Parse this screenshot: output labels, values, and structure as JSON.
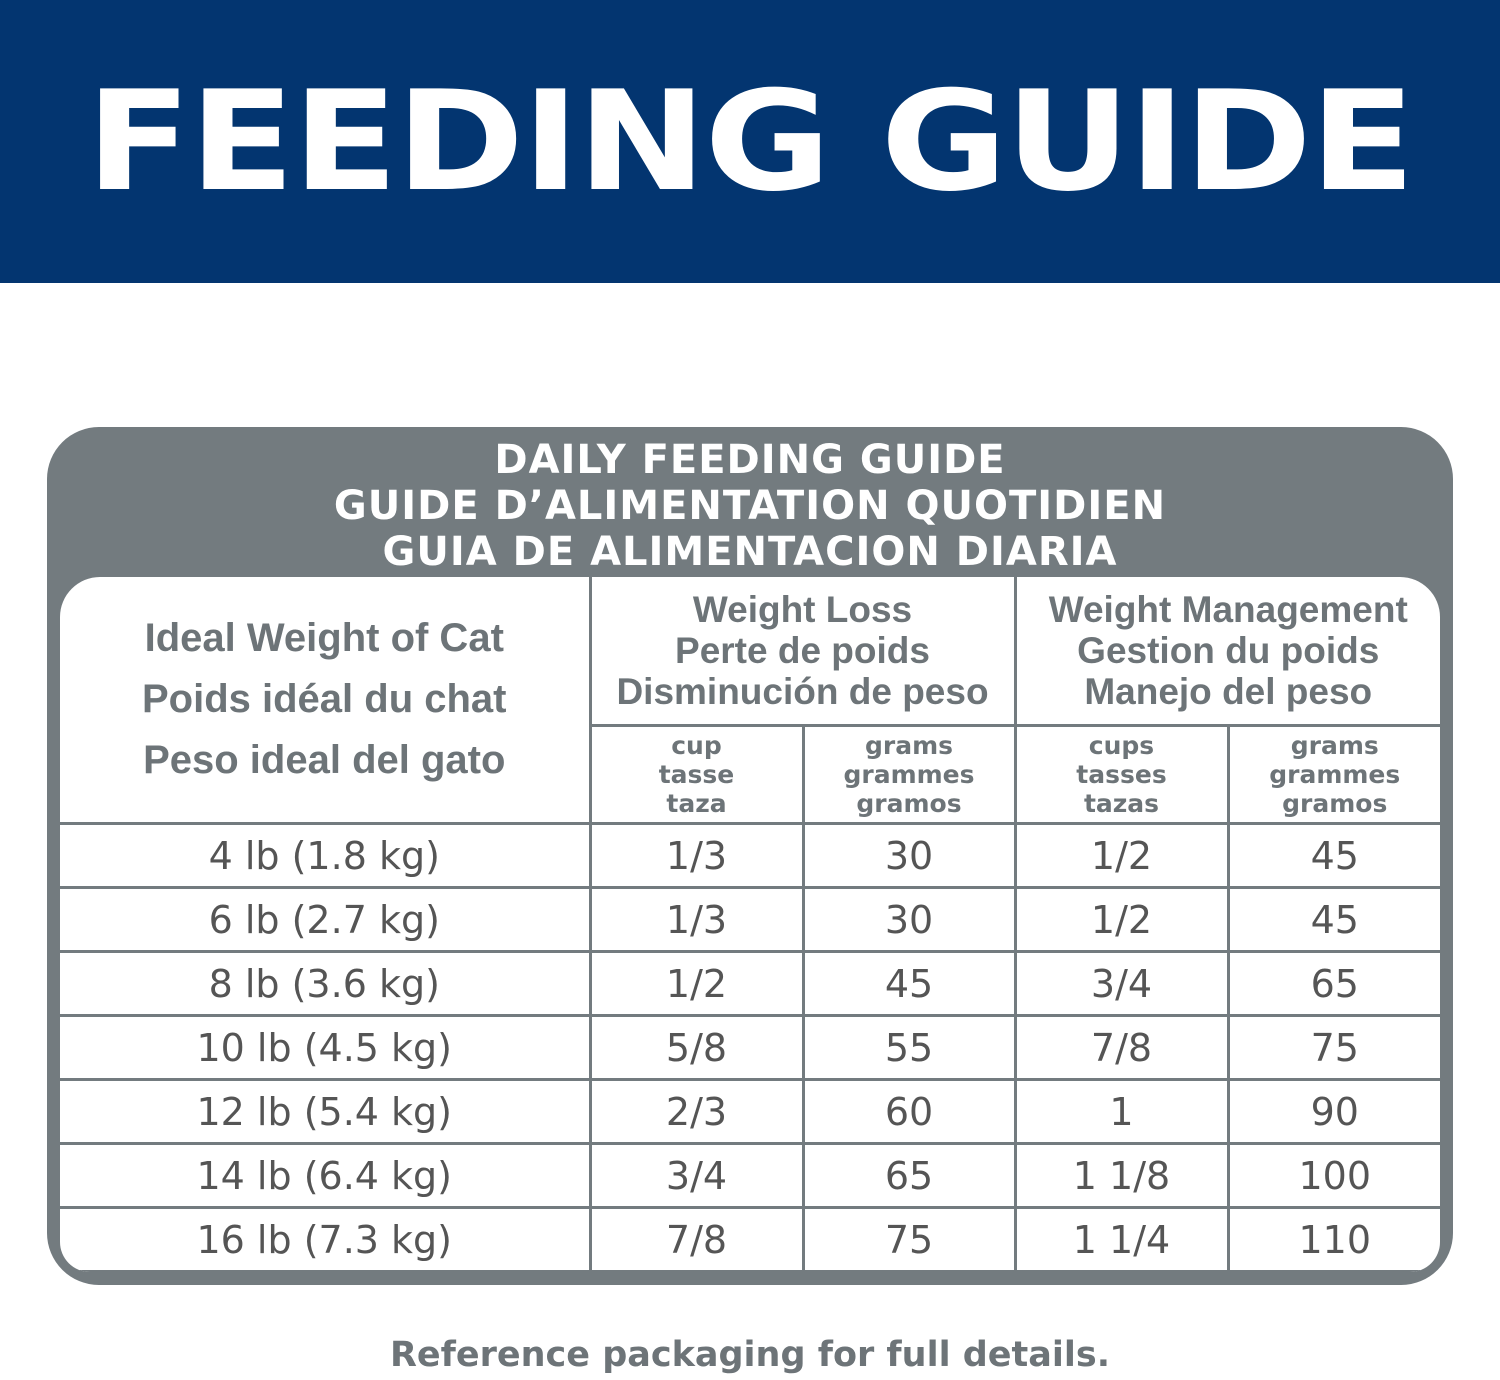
{
  "header": {
    "title": "FEEDING GUIDE"
  },
  "table": {
    "title": [
      "DAILY FEEDING GUIDE",
      "GUIDE D’ALIMENTATION QUOTIDIEN",
      "GUIA DE ALIMENTACION DIARIA"
    ],
    "weight_header": [
      "Ideal Weight of Cat",
      "Poids idéal du chat",
      "Peso ideal del gato"
    ],
    "groups": [
      {
        "name": [
          "Weight Loss",
          "Perte de poids",
          "Disminución de peso"
        ],
        "units": [
          [
            "cup",
            "tasse",
            "taza"
          ],
          [
            "grams",
            "grammes",
            "gramos"
          ]
        ]
      },
      {
        "name": [
          "Weight Management",
          "Gestion du poids",
          "Manejo del peso"
        ],
        "units": [
          [
            "cups",
            "tasses",
            "tazas"
          ],
          [
            "grams",
            "grammes",
            "gramos"
          ]
        ]
      }
    ],
    "rows": [
      [
        "4 lb (1.8 kg)",
        "1/3",
        30,
        "1/2",
        45
      ],
      [
        "6 lb (2.7 kg)",
        "1/3",
        30,
        "1/2",
        45
      ],
      [
        "8 lb (3.6 kg)",
        "1/2",
        45,
        "3/4",
        65
      ],
      [
        "10 lb (4.5 kg)",
        "5/8",
        55,
        "7/8",
        75
      ],
      [
        "12 lb (5.4 kg)",
        "2/3",
        60,
        "1",
        90
      ],
      [
        "14 lb (6.4 kg)",
        "3/4",
        65,
        "1 1/8",
        100
      ],
      [
        "16 lb (7.3 kg)",
        "7/8",
        75,
        "1 1/4",
        110
      ]
    ]
  },
  "footer": {
    "note": "Reference packaging for full details."
  }
}
